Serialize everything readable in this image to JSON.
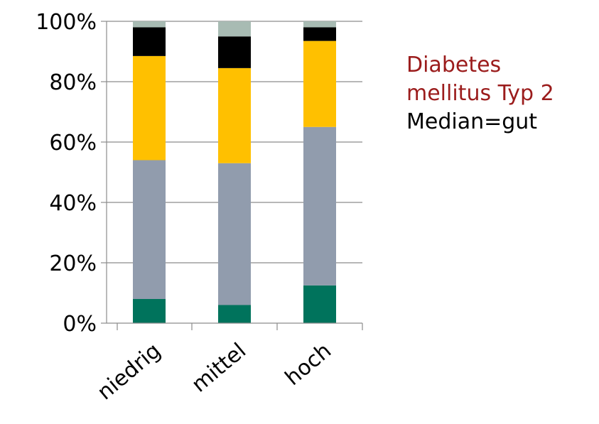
{
  "chart_data": {
    "type": "bar",
    "stacked": true,
    "categories": [
      "niedrig",
      "mittel",
      "hoch"
    ],
    "series": [
      {
        "color": "#00735C",
        "values": [
          8,
          6,
          12.5
        ]
      },
      {
        "color": "#919CAD",
        "values": [
          46,
          47,
          52.5
        ]
      },
      {
        "color": "#FFC000",
        "values": [
          34.5,
          31.5,
          28.5
        ]
      },
      {
        "color": "#000000",
        "values": [
          9.5,
          10.5,
          4.5
        ]
      },
      {
        "color": "#A8BBB3",
        "values": [
          2,
          5,
          2
        ]
      }
    ],
    "ylim": [
      0,
      100
    ],
    "yticks": [
      "0%",
      "20%",
      "40%",
      "60%",
      "80%",
      "100%"
    ],
    "grid": true,
    "annotation": {
      "lines": [
        {
          "text": "Diabetes",
          "color": "#9B1C1C"
        },
        {
          "text": "mellitus Typ 2",
          "color": "#9B1C1C"
        },
        {
          "text": "Median=gut",
          "color": "#000000"
        }
      ]
    }
  }
}
